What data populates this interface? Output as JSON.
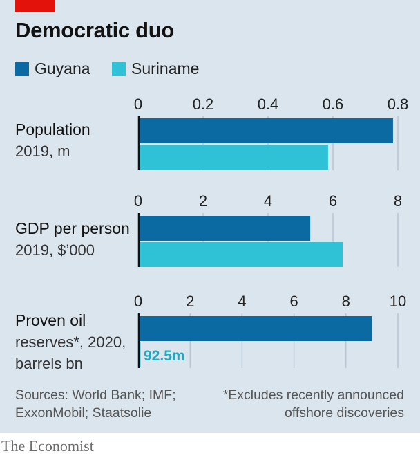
{
  "title": "Democratic duo",
  "legend": [
    {
      "name": "Guyana",
      "color": "#0c6aa3"
    },
    {
      "name": "Suriname",
      "color": "#2fc1d6"
    }
  ],
  "chart_data": [
    {
      "type": "bar",
      "orientation": "horizontal",
      "label": "Population",
      "sublabel": "2019, m",
      "xlim": [
        0,
        0.8
      ],
      "ticks": [
        "0",
        "0.2",
        "0.4",
        "0.6",
        "0.8"
      ],
      "tick_values": [
        0,
        0.2,
        0.4,
        0.6,
        0.8
      ],
      "series": [
        {
          "name": "Guyana",
          "value": 0.785
        },
        {
          "name": "Suriname",
          "value": 0.585
        }
      ]
    },
    {
      "type": "bar",
      "orientation": "horizontal",
      "label": "GDP per person",
      "sublabel": "2019, $’000",
      "xlim": [
        0,
        8
      ],
      "ticks": [
        "0",
        "2",
        "4",
        "6",
        "8"
      ],
      "tick_values": [
        0,
        2,
        4,
        6,
        8
      ],
      "series": [
        {
          "name": "Guyana",
          "value": 5.3
        },
        {
          "name": "Suriname",
          "value": 6.3
        }
      ]
    },
    {
      "type": "bar",
      "orientation": "horizontal",
      "label": "Proven oil",
      "sublabel": "reserves*, 2020,",
      "sublabel2": "barrels bn",
      "xlim": [
        0,
        10
      ],
      "ticks": [
        "0",
        "2",
        "4",
        "6",
        "8",
        "10"
      ],
      "tick_values": [
        0,
        2,
        4,
        6,
        8,
        10
      ],
      "series": [
        {
          "name": "Guyana",
          "value": 9.0
        },
        {
          "name": "Suriname",
          "value": 0.0925
        }
      ],
      "annotation": "92.5m"
    }
  ],
  "sources": [
    "Sources: World Bank; IMF;",
    "ExxonMobil; Staatsolie"
  ],
  "footnote": [
    "*Excludes recently announced",
    "offshore discoveries"
  ],
  "brand": "The Economist",
  "colors": {
    "background": "#dbe5ee",
    "accent": "#e3120b",
    "grid": "#b8c6d3"
  }
}
